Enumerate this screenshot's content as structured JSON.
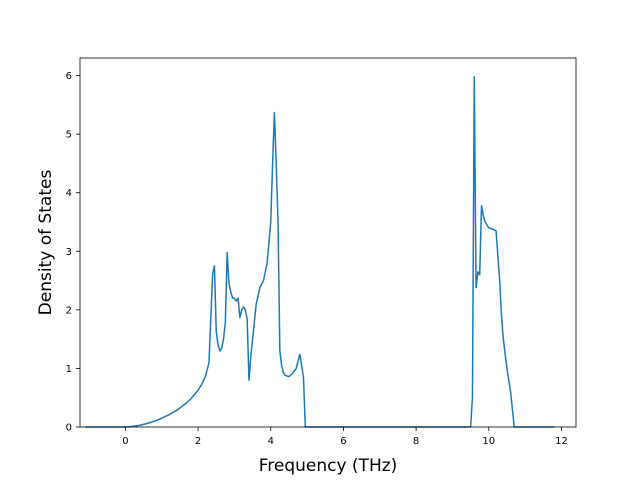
{
  "chart_data": {
    "type": "line",
    "title": "",
    "xlabel": "Frequency (THz)",
    "ylabel": "Density of States",
    "xlim": [
      -1.25,
      12.4
    ],
    "ylim": [
      0,
      6.3
    ],
    "xticks": [
      0,
      2,
      4,
      6,
      8,
      10,
      12
    ],
    "yticks": [
      0,
      1,
      2,
      3,
      4,
      5,
      6
    ],
    "grid": false,
    "colors": {
      "line": "#1f77b4",
      "axes": "#000000",
      "background": "#ffffff"
    },
    "series": [
      {
        "x": [
          -1.1,
          -0.5,
          0.0,
          0.2,
          0.4,
          0.6,
          0.8,
          1.0,
          1.2,
          1.4,
          1.6,
          1.8,
          2.0,
          2.1,
          2.2,
          2.3,
          2.4,
          2.45,
          2.5,
          2.55,
          2.6,
          2.65,
          2.7,
          2.75,
          2.8,
          2.85,
          2.9,
          2.95,
          3.0,
          3.05,
          3.1,
          3.15,
          3.2,
          3.25,
          3.3,
          3.35,
          3.4,
          3.45,
          3.5,
          3.55,
          3.6,
          3.7,
          3.8,
          3.9,
          4.0,
          4.05,
          4.1,
          4.15,
          4.2,
          4.25,
          4.3,
          4.35,
          4.4,
          4.5,
          4.6,
          4.7,
          4.8,
          4.9,
          4.95,
          5.0,
          5.05,
          6.0,
          8.0,
          9.5,
          9.55,
          9.6,
          9.65,
          9.7,
          9.75,
          9.8,
          9.85,
          9.9,
          9.95,
          10.0,
          10.1,
          10.2,
          10.3,
          10.35,
          10.4,
          10.5,
          10.6,
          10.7,
          10.75,
          11.0,
          11.8
        ],
        "values": [
          0.0,
          0.0,
          0.0,
          0.01,
          0.03,
          0.06,
          0.1,
          0.15,
          0.21,
          0.28,
          0.37,
          0.48,
          0.63,
          0.73,
          0.86,
          1.1,
          2.62,
          2.75,
          1.63,
          1.4,
          1.3,
          1.35,
          1.5,
          1.8,
          2.98,
          2.45,
          2.3,
          2.2,
          2.2,
          2.15,
          2.2,
          1.87,
          2.0,
          2.05,
          2.0,
          1.85,
          0.8,
          1.2,
          1.5,
          1.8,
          2.1,
          2.38,
          2.5,
          2.8,
          3.5,
          4.5,
          5.37,
          4.5,
          3.5,
          1.3,
          1.05,
          0.92,
          0.88,
          0.86,
          0.92,
          1.0,
          1.24,
          0.85,
          0.0,
          0.0,
          0.0,
          0.0,
          0.0,
          0.0,
          0.5,
          5.98,
          2.38,
          2.65,
          2.6,
          3.78,
          3.6,
          3.5,
          3.45,
          3.4,
          3.38,
          3.35,
          2.5,
          1.9,
          1.5,
          1.0,
          0.6,
          0.0,
          0.0,
          0.0,
          0.0
        ]
      }
    ]
  }
}
